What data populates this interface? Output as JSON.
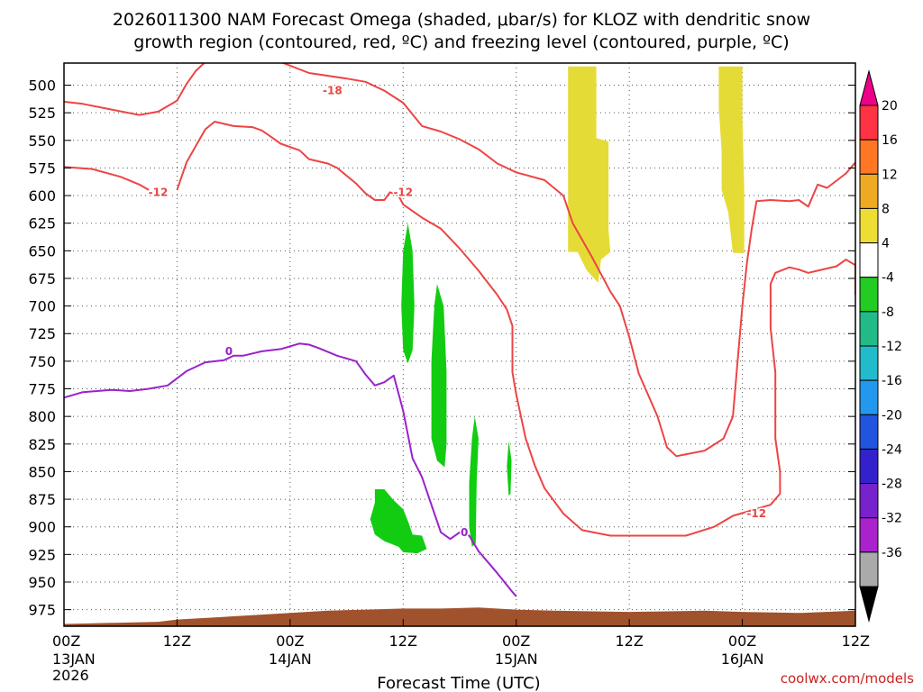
{
  "chart_data": {
    "type": "contour",
    "title_line1": "2026011300 NAM Forecast Omega (shaded, μbar/s) for KLOZ with dendritic snow",
    "title_line2": "growth region (contoured, red, ºC) and freezing level (contoured, purple, ºC)",
    "xlabel": "Forecast Time (UTC)",
    "credit": "coolwx.com/models",
    "x_ticks": [
      {
        "hour": 0,
        "label": "00Z",
        "sub": "13JAN",
        "sub2": "2026"
      },
      {
        "hour": 12,
        "label": "12Z",
        "sub": "",
        "sub2": ""
      },
      {
        "hour": 24,
        "label": "00Z",
        "sub": "14JAN",
        "sub2": ""
      },
      {
        "hour": 36,
        "label": "12Z",
        "sub": "",
        "sub2": ""
      },
      {
        "hour": 48,
        "label": "00Z",
        "sub": "15JAN",
        "sub2": ""
      },
      {
        "hour": 60,
        "label": "12Z",
        "sub": "",
        "sub2": ""
      },
      {
        "hour": 72,
        "label": "00Z",
        "sub": "16JAN",
        "sub2": ""
      },
      {
        "hour": 84,
        "label": "12Z",
        "sub": "",
        "sub2": ""
      }
    ],
    "xlim": [
      0,
      84
    ],
    "ylim": [
      990,
      480
    ],
    "y_ticks": [
      500,
      525,
      550,
      575,
      600,
      625,
      650,
      675,
      700,
      725,
      750,
      775,
      800,
      825,
      850,
      875,
      900,
      925,
      950,
      975
    ],
    "grid": true,
    "colorbar": {
      "labels": [
        "20",
        "16",
        "12",
        "8",
        "4",
        "-4",
        "-8",
        "-12",
        "-16",
        "-20",
        "-24",
        "-28",
        "-32",
        "-36"
      ],
      "colors": [
        "#ee0088",
        "#ff3344",
        "#ff7722",
        "#eeaa22",
        "#eedd33",
        "#ffffff",
        "#22cc22",
        "#22bb88",
        "#22bbcc",
        "#2299ee",
        "#2255dd",
        "#3322cc",
        "#7722cc",
        "#aa22cc",
        "#aaaaaa",
        "#000000"
      ]
    },
    "colors": {
      "dendritic": "#ee4444",
      "freezing": "#9922cc",
      "omega_pos": "#e5db36",
      "omega_neg": "#11cc11",
      "terrain": "#a0522d"
    },
    "contour_labels": [
      {
        "text": "-18",
        "color": "#ee4444",
        "hour": 28.5,
        "p": 505
      },
      {
        "text": "-12",
        "color": "#ee4444",
        "hour": 10,
        "p": 597
      },
      {
        "text": "-12",
        "color": "#ee4444",
        "hour": 36,
        "p": 597
      },
      {
        "text": "-12",
        "color": "#ee4444",
        "hour": 73.5,
        "p": 888
      },
      {
        "text": "0",
        "color": "#9922cc",
        "hour": 17.5,
        "p": 741
      },
      {
        "text": "0",
        "color": "#9922cc",
        "hour": 42.5,
        "p": 905
      }
    ],
    "dendritic_upper": [
      [
        0,
        515
      ],
      [
        2,
        517
      ],
      [
        5,
        522
      ],
      [
        8,
        527
      ],
      [
        10,
        524
      ],
      [
        12,
        514
      ],
      [
        13,
        499
      ],
      [
        14,
        487
      ],
      [
        15,
        479
      ],
      [
        23,
        479
      ],
      [
        26,
        489
      ],
      [
        30,
        494
      ],
      [
        32,
        497
      ],
      [
        34,
        505
      ],
      [
        36,
        516
      ],
      [
        38,
        537
      ],
      [
        40,
        542
      ],
      [
        42,
        549
      ],
      [
        44,
        558
      ],
      [
        46,
        571
      ],
      [
        48,
        579
      ],
      [
        51,
        586
      ],
      [
        53,
        600
      ],
      [
        54,
        625
      ],
      [
        56,
        655
      ],
      [
        58,
        687
      ],
      [
        59,
        700
      ],
      [
        60,
        728
      ],
      [
        61,
        761
      ],
      [
        63,
        800
      ],
      [
        64,
        828
      ],
      [
        65,
        836
      ],
      [
        68,
        831
      ],
      [
        70,
        820
      ],
      [
        71,
        800
      ],
      [
        71.5,
        750
      ],
      [
        72,
        700
      ],
      [
        72.5,
        660
      ],
      [
        73,
        630
      ],
      [
        73.5,
        605
      ],
      [
        75,
        604
      ],
      [
        77,
        605
      ],
      [
        78,
        604
      ],
      [
        79,
        610
      ],
      [
        80,
        590
      ],
      [
        81,
        593
      ],
      [
        83,
        580
      ],
      [
        84,
        570
      ]
    ],
    "dendritic_lower_left": [
      [
        0,
        574
      ],
      [
        3,
        576
      ],
      [
        6,
        583
      ],
      [
        8,
        590
      ],
      [
        9,
        595
      ]
    ],
    "dendritic_main": [
      [
        12,
        595
      ],
      [
        13,
        570
      ],
      [
        14,
        555
      ],
      [
        15,
        540
      ],
      [
        16,
        533
      ],
      [
        18,
        537
      ],
      [
        20,
        538
      ],
      [
        21,
        541
      ],
      [
        22,
        547
      ],
      [
        23,
        553
      ],
      [
        25,
        559
      ],
      [
        26,
        567
      ],
      [
        28,
        571
      ],
      [
        29,
        575
      ],
      [
        31,
        589
      ],
      [
        32,
        598
      ],
      [
        33,
        604
      ],
      [
        34,
        604
      ],
      [
        34.6,
        597
      ],
      [
        35.5,
        600
      ],
      [
        36,
        608
      ],
      [
        38,
        620
      ],
      [
        40,
        630
      ],
      [
        42,
        648
      ],
      [
        44,
        668
      ],
      [
        46,
        690
      ],
      [
        47,
        703
      ],
      [
        47.6,
        718
      ],
      [
        47.6,
        760
      ],
      [
        48,
        780
      ],
      [
        49,
        820
      ],
      [
        50,
        845
      ],
      [
        51,
        865
      ],
      [
        53,
        888
      ],
      [
        55,
        903
      ],
      [
        58,
        908
      ],
      [
        62,
        908
      ],
      [
        66,
        908
      ],
      [
        69,
        900
      ],
      [
        71,
        890
      ],
      [
        73,
        885
      ],
      [
        75,
        880
      ],
      [
        76,
        870
      ],
      [
        76,
        850
      ],
      [
        75.5,
        820
      ],
      [
        75.5,
        760
      ],
      [
        75,
        720
      ],
      [
        75,
        680
      ],
      [
        75.5,
        670
      ],
      [
        77,
        665
      ],
      [
        78,
        667
      ],
      [
        79,
        670
      ],
      [
        80,
        668
      ],
      [
        82,
        664
      ],
      [
        83,
        658
      ],
      [
        84,
        663
      ],
      [
        84,
        690
      ]
    ],
    "freezing_line": [
      [
        0,
        783
      ],
      [
        2,
        778
      ],
      [
        5,
        776
      ],
      [
        7,
        777
      ],
      [
        9,
        775
      ],
      [
        11,
        772
      ],
      [
        13,
        759
      ],
      [
        15,
        751
      ],
      [
        17,
        749
      ],
      [
        18,
        745
      ],
      [
        19,
        745
      ],
      [
        21,
        741
      ],
      [
        23,
        739
      ],
      [
        25,
        734
      ],
      [
        26,
        735
      ],
      [
        27,
        738
      ],
      [
        29,
        745
      ],
      [
        31,
        750
      ],
      [
        32,
        762
      ],
      [
        33,
        772
      ],
      [
        34,
        769
      ],
      [
        35,
        763
      ],
      [
        36,
        795
      ],
      [
        37,
        838
      ],
      [
        38,
        855
      ],
      [
        39,
        880
      ],
      [
        40,
        905
      ],
      [
        41,
        911
      ],
      [
        42,
        905
      ],
      [
        43,
        908
      ],
      [
        44,
        922
      ],
      [
        46,
        942
      ],
      [
        47.5,
        958
      ],
      [
        48,
        963
      ]
    ],
    "terrain_profile": [
      [
        0,
        988
      ],
      [
        5,
        987
      ],
      [
        10,
        986
      ],
      [
        12,
        984
      ],
      [
        16,
        982
      ],
      [
        20,
        980
      ],
      [
        24,
        978
      ],
      [
        28,
        976
      ],
      [
        32,
        975
      ],
      [
        36,
        974
      ],
      [
        40,
        974
      ],
      [
        44,
        973
      ],
      [
        48,
        975
      ],
      [
        52,
        976
      ],
      [
        60,
        977
      ],
      [
        68,
        976
      ],
      [
        72,
        977
      ],
      [
        78,
        978
      ],
      [
        84,
        976
      ]
    ],
    "omega_positive_blobs": [
      [
        [
          53.5,
          483
        ],
        [
          56.5,
          483
        ],
        [
          56.5,
          548
        ],
        [
          57.8,
          551
        ],
        [
          57.8,
          631
        ],
        [
          58,
          651
        ],
        [
          57,
          658
        ],
        [
          56.7,
          679
        ],
        [
          55.5,
          668
        ],
        [
          54.5,
          651
        ],
        [
          53.5,
          651
        ],
        [
          53.5,
          580
        ]
      ],
      [
        [
          69.5,
          483
        ],
        [
          72,
          483
        ],
        [
          72,
          530
        ],
        [
          72.2,
          595
        ],
        [
          72.2,
          652
        ],
        [
          71,
          652
        ],
        [
          70.5,
          615
        ],
        [
          69.8,
          595
        ],
        [
          69.8,
          560
        ],
        [
          69.5,
          520
        ]
      ]
    ],
    "omega_negative_blobs": [
      [
        [
          36.5,
          625
        ],
        [
          37,
          650
        ],
        [
          37.2,
          700
        ],
        [
          37,
          740
        ],
        [
          36.5,
          752
        ],
        [
          36,
          740
        ],
        [
          35.8,
          700
        ],
        [
          36,
          650
        ]
      ],
      [
        [
          39.6,
          680
        ],
        [
          40.3,
          700
        ],
        [
          40.6,
          760
        ],
        [
          40.6,
          825
        ],
        [
          40.4,
          846
        ],
        [
          39.6,
          840
        ],
        [
          39,
          820
        ],
        [
          39,
          750
        ],
        [
          39.3,
          700
        ]
      ],
      [
        [
          43.6,
          800
        ],
        [
          44,
          820
        ],
        [
          43.8,
          860
        ],
        [
          43.7,
          915
        ],
        [
          43.3,
          918
        ],
        [
          43,
          900
        ],
        [
          43,
          860
        ],
        [
          43.3,
          820
        ]
      ],
      [
        [
          47.2,
          822
        ],
        [
          47.5,
          840
        ],
        [
          47.4,
          870
        ],
        [
          47.2,
          872
        ],
        [
          47,
          845
        ]
      ],
      [
        [
          33,
          866
        ],
        [
          34,
          866
        ],
        [
          35,
          876
        ],
        [
          36,
          884
        ],
        [
          36.6,
          897
        ],
        [
          37,
          907
        ],
        [
          38,
          908
        ],
        [
          38.5,
          920
        ],
        [
          37.5,
          924
        ],
        [
          36,
          923
        ],
        [
          35.5,
          918
        ],
        [
          34,
          913
        ],
        [
          33,
          907
        ],
        [
          32.5,
          893
        ],
        [
          33,
          878
        ]
      ]
    ]
  }
}
